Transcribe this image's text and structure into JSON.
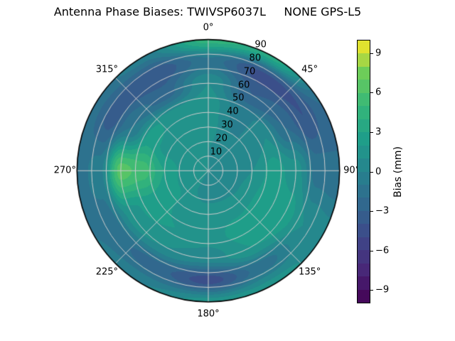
{
  "title": "Antenna Phase Biases: TWIVSP6037L     NONE GPS-L5",
  "chart_data": {
    "type": "heatmap",
    "projection": "polar",
    "title": "Antenna Phase Biases: TWIVSP6037L     NONE GPS-L5",
    "angle_direction": "clockwise",
    "zero_location": "top",
    "angle_ticks": [
      {
        "deg": 0,
        "label": "0°"
      },
      {
        "deg": 45,
        "label": "45°"
      },
      {
        "deg": 90,
        "label": "90°"
      },
      {
        "deg": 135,
        "label": "135°"
      },
      {
        "deg": 180,
        "label": "180°"
      },
      {
        "deg": 225,
        "label": "225°"
      },
      {
        "deg": 270,
        "label": "270°"
      },
      {
        "deg": 315,
        "label": "315°"
      }
    ],
    "radial_ticks": [
      {
        "r": 10,
        "label": "10"
      },
      {
        "r": 20,
        "label": "20"
      },
      {
        "r": 30,
        "label": "30"
      },
      {
        "r": 40,
        "label": "40"
      },
      {
        "r": 50,
        "label": "50"
      },
      {
        "r": 60,
        "label": "60"
      },
      {
        "r": 70,
        "label": "70"
      },
      {
        "r": 80,
        "label": "80"
      },
      {
        "r": 90,
        "label": "90"
      }
    ],
    "radial_label_angle_deg": 22.5,
    "radial_max": 90,
    "grid_azimuth_deg": [
      0,
      30,
      60,
      90,
      120,
      150,
      180,
      210,
      240,
      270,
      300,
      330
    ],
    "grid_zenith": [
      0,
      15,
      30,
      45,
      60,
      75,
      90
    ],
    "bias_mm": [
      [
        1.0,
        1.0,
        1.0,
        1.0,
        1.0,
        1.0,
        1.0,
        1.0,
        1.0,
        1.0,
        1.0,
        1.0
      ],
      [
        1.0,
        0.5,
        0.0,
        0.0,
        0.0,
        0.5,
        0.5,
        1.0,
        1.5,
        1.5,
        1.0,
        1.0
      ],
      [
        1.5,
        0.0,
        0.0,
        1.0,
        1.5,
        1.5,
        1.5,
        1.5,
        2.5,
        3.0,
        1.5,
        1.0
      ],
      [
        1.5,
        -0.5,
        1.0,
        2.5,
        3.0,
        2.5,
        1.5,
        2.0,
        2.5,
        5.5,
        2.5,
        1.5
      ],
      [
        1.0,
        -3.0,
        -2.0,
        1.5,
        2.5,
        2.0,
        0.5,
        1.0,
        1.5,
        6.5,
        -1.0,
        -2.5
      ],
      [
        -1.5,
        -4.5,
        -4.0,
        -1.5,
        1.0,
        -1.5,
        -4.5,
        -2.5,
        -1.5,
        -0.5,
        -3.5,
        -4.0
      ],
      [
        4.5,
        3.5,
        -2.0,
        -2.0,
        0.5,
        1.5,
        1.5,
        0.0,
        -1.0,
        -1.5,
        -1.5,
        -0.5
      ]
    ],
    "colorbar": {
      "label": "Bias (mm)",
      "vmin": -10,
      "vmax": 10,
      "n_levels": 20,
      "colormap": "viridis",
      "ticks": [
        {
          "v": 9,
          "label": "9"
        },
        {
          "v": 6,
          "label": "6"
        },
        {
          "v": 3,
          "label": "3"
        },
        {
          "v": 0,
          "label": "0"
        },
        {
          "v": -3,
          "label": "−3"
        },
        {
          "v": -6,
          "label": "−6"
        },
        {
          "v": -9,
          "label": "−9"
        }
      ]
    },
    "viridis_anchors": [
      "#440154",
      "#482878",
      "#3e4989",
      "#31688e",
      "#26828e",
      "#1f9e89",
      "#35b779",
      "#6dcd59",
      "#fde725"
    ],
    "colors": {
      "grid_lines": "#cdcdcd",
      "outline": "#000000",
      "background": "#ffffff",
      "text": "#000000"
    }
  }
}
